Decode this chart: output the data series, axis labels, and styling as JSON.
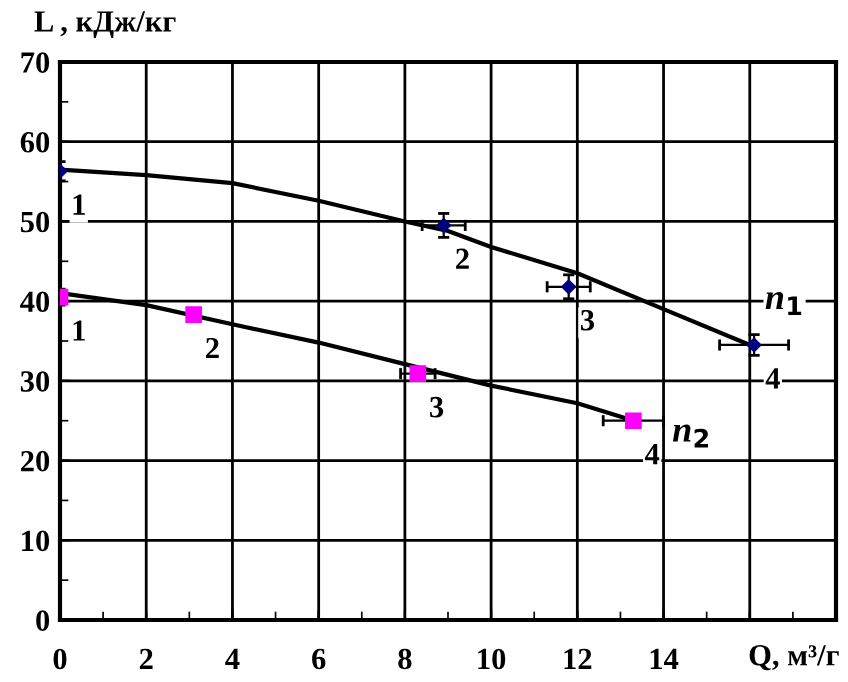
{
  "chart_data": {
    "type": "scatter",
    "xlabel": "Q, м³/г",
    "ylabel": "L , кДж/кг",
    "xlim": [
      0,
      18
    ],
    "xticks": [
      0,
      2,
      4,
      6,
      8,
      10,
      12,
      14,
      {
        "value": 16,
        "label": null
      },
      {
        "value": 18,
        "label": null
      }
    ],
    "ylim": [
      0,
      70
    ],
    "yticks": [
      0,
      10,
      20,
      30,
      40,
      50,
      60,
      70
    ],
    "grid": true,
    "series": [
      {
        "type": "line",
        "name": "n$_{1}$",
        "color": "#000000",
        "x": [
          0,
          2,
          4,
          6,
          8,
          9,
          10,
          12,
          14,
          16
        ],
        "values": [
          56.5,
          55.8,
          54.8,
          52.6,
          50,
          48.8,
          46.8,
          43.5,
          39,
          34.5
        ]
      },
      {
        "type": "line",
        "name": "n$_{2}$",
        "color": "#000000",
        "x": [
          0,
          2,
          4,
          6,
          8,
          10,
          12,
          13.3
        ],
        "values": [
          41,
          39.5,
          37.1,
          34.8,
          32.1,
          29.4,
          27.2,
          25
        ]
      },
      {
        "marker": "diamond",
        "color": "#000080",
        "x": [
          0,
          8.9,
          11.8,
          16.1
        ],
        "values": [
          56.3,
          49.5,
          41.8,
          34.5
        ],
        "errors": [
          1.2,
          1.5,
          1.5,
          1.3
        ],
        "xerrors": [
          null,
          0.5,
          0.5,
          0.8
        ]
      },
      {
        "marker": "square",
        "color": "#ff00ff",
        "x": [
          0,
          3.1,
          8.3,
          13.3
        ],
        "values": [
          40.5,
          38.3,
          30.9,
          25
        ],
        "errors": [
          1,
          null,
          null,
          null
        ],
        "xerrors": [
          null,
          null,
          0.4,
          0.7
        ]
      }
    ],
    "annotations": [
      {
        "text": "1",
        "x": 0,
        "y": 56.3
      },
      {
        "text": "2",
        "x": 8.9,
        "y": 49.5
      },
      {
        "text": "3",
        "x": 11.8,
        "y": 41.8
      },
      {
        "text": "4",
        "x": 16.1,
        "y": 34.5
      },
      {
        "text": "1",
        "x": 0,
        "y": 40.5
      },
      {
        "text": "2",
        "x": 3.1,
        "y": 38.3
      },
      {
        "text": "3",
        "x": 8.3,
        "y": 30.9
      },
      {
        "text": "4",
        "x": 13.3,
        "y": 25
      }
    ]
  }
}
